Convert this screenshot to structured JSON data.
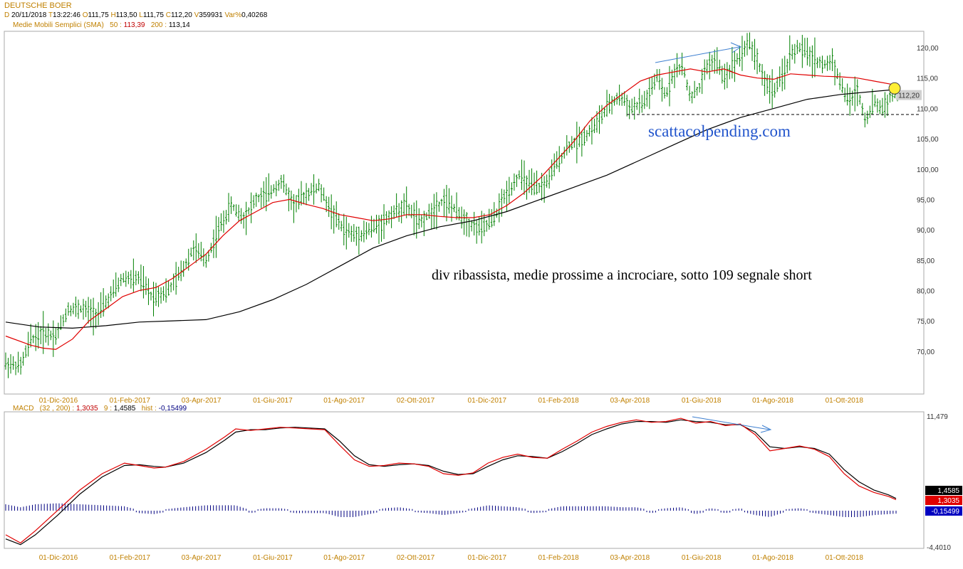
{
  "header": {
    "title": "DEUTSCHE BOER",
    "date_key": "D",
    "date": "20/11/2018",
    "time_key": "T",
    "time": "13:22:46",
    "open_key": "O",
    "open": "111,75",
    "high_key": "H",
    "high": "113,50",
    "low_key": "L",
    "low": "111,75",
    "close_key": "C",
    "close": "112,20",
    "vol_key": "V",
    "vol": "359931",
    "var_key": "Var%",
    "var": "0,40268"
  },
  "sma_legend": {
    "label": "Medie Mobili Semplici (SMA)",
    "p50_label": "50 :",
    "p50_value": "113,39",
    "p200_label": "200 :",
    "p200_value": "113,14"
  },
  "macd_legend": {
    "label": "MACD",
    "params": "(32 , 200) :",
    "macd_value": "1,3035",
    "signal_label": "9 :",
    "signal_value": "1,4585",
    "hist_label": "hist :",
    "hist_value": "-0,15499"
  },
  "colors": {
    "price_bar": "#008000",
    "sma50": "#e00000",
    "sma200": "#000000",
    "annotation_arrow": "#3d7fd0",
    "macd_line": "#e00000",
    "signal_line": "#000000",
    "histogram": "#000080",
    "date_label": "#c08000",
    "watermark": "#2255cc",
    "marker_circle": "#ffee33"
  },
  "annotations": {
    "comment": "div ribassista, medie prossime a incrociare, sotto 109 segnale short",
    "watermark": "scattacolpending.com",
    "support_level": 109
  },
  "chart_data": [
    {
      "type": "ohlc",
      "title": "DEUTSCHE BOER",
      "x_ticks": [
        "01-Dic-2016",
        "01-Feb-2017",
        "03-Apr-2017",
        "01-Giu-2017",
        "01-Ago-2017",
        "02-Ott-2017",
        "01-Dic-2017",
        "01-Feb-2018",
        "03-Apr-2018",
        "01-Giu-2018",
        "01-Ago-2018",
        "01-Ott-2018"
      ],
      "y_ticks": [
        "70,00",
        "75,00",
        "80,00",
        "85,00",
        "90,00",
        "95,00",
        "100,00",
        "105,00",
        "110,00",
        "115,00",
        "120,00"
      ],
      "ylim": [
        64,
        122
      ],
      "last_price_label": "112,20",
      "last_price": 112.2,
      "price_path": [
        [
          0,
          68
        ],
        [
          18,
          67.5
        ],
        [
          30,
          72
        ],
        [
          45,
          73
        ],
        [
          60,
          72.5
        ],
        [
          75,
          77
        ],
        [
          90,
          77
        ],
        [
          110,
          76
        ],
        [
          125,
          79
        ],
        [
          140,
          82
        ],
        [
          160,
          82
        ],
        [
          175,
          79
        ],
        [
          195,
          80
        ],
        [
          210,
          83
        ],
        [
          225,
          87
        ],
        [
          240,
          85
        ],
        [
          255,
          90
        ],
        [
          270,
          94
        ],
        [
          285,
          92
        ],
        [
          300,
          95
        ],
        [
          315,
          96
        ],
        [
          330,
          98
        ],
        [
          345,
          94
        ],
        [
          360,
          96
        ],
        [
          375,
          97
        ],
        [
          390,
          93
        ],
        [
          405,
          90
        ],
        [
          420,
          89
        ],
        [
          435,
          90
        ],
        [
          450,
          91
        ],
        [
          465,
          93
        ],
        [
          480,
          94
        ],
        [
          495,
          91
        ],
        [
          510,
          93
        ],
        [
          525,
          95
        ],
        [
          540,
          93
        ],
        [
          555,
          91
        ],
        [
          570,
          90
        ],
        [
          585,
          92
        ],
        [
          600,
          96
        ],
        [
          615,
          99
        ],
        [
          630,
          97
        ],
        [
          645,
          97
        ],
        [
          660,
          101
        ],
        [
          675,
          104
        ],
        [
          690,
          105
        ],
        [
          705,
          107
        ],
        [
          720,
          110
        ],
        [
          735,
          112
        ],
        [
          750,
          110
        ],
        [
          765,
          111
        ],
        [
          780,
          115
        ],
        [
          790,
          112
        ],
        [
          800,
          116
        ],
        [
          810,
          117
        ],
        [
          820,
          112
        ],
        [
          830,
          113
        ],
        [
          840,
          117
        ],
        [
          850,
          118
        ],
        [
          860,
          115
        ],
        [
          870,
          117
        ],
        [
          880,
          119
        ],
        [
          890,
          121
        ],
        [
          900,
          118
        ],
        [
          910,
          114
        ],
        [
          920,
          113
        ],
        [
          930,
          115
        ],
        [
          940,
          119
        ],
        [
          950,
          120
        ],
        [
          960,
          119
        ],
        [
          970,
          118
        ],
        [
          980,
          117
        ],
        [
          990,
          118
        ],
        [
          1000,
          114
        ],
        [
          1010,
          111
        ],
        [
          1020,
          113
        ],
        [
          1030,
          108
        ],
        [
          1040,
          111
        ],
        [
          1050,
          110
        ],
        [
          1060,
          112
        ],
        [
          1068,
          112.2
        ]
      ],
      "sma50_path": [
        [
          0,
          72.5
        ],
        [
          30,
          71
        ],
        [
          45,
          70.5
        ],
        [
          60,
          70.3
        ],
        [
          80,
          72
        ],
        [
          100,
          75
        ],
        [
          120,
          77
        ],
        [
          140,
          79
        ],
        [
          160,
          80
        ],
        [
          180,
          80.5
        ],
        [
          200,
          82
        ],
        [
          220,
          84
        ],
        [
          240,
          86
        ],
        [
          260,
          89
        ],
        [
          280,
          91.5
        ],
        [
          300,
          93
        ],
        [
          320,
          94.5
        ],
        [
          340,
          95
        ],
        [
          360,
          94.2
        ],
        [
          380,
          93.5
        ],
        [
          400,
          92.5
        ],
        [
          420,
          92
        ],
        [
          440,
          91.5
        ],
        [
          460,
          91.8
        ],
        [
          480,
          92.5
        ],
        [
          500,
          92.5
        ],
        [
          520,
          92.2
        ],
        [
          540,
          92
        ],
        [
          560,
          92
        ],
        [
          580,
          92.5
        ],
        [
          600,
          94
        ],
        [
          620,
          96
        ],
        [
          640,
          98.5
        ],
        [
          660,
          101.5
        ],
        [
          680,
          104.5
        ],
        [
          700,
          108
        ],
        [
          720,
          110.5
        ],
        [
          740,
          112.5
        ],
        [
          760,
          114.5
        ],
        [
          780,
          115.5
        ],
        [
          800,
          116
        ],
        [
          820,
          116.5
        ],
        [
          840,
          116
        ],
        [
          860,
          116.5
        ],
        [
          880,
          115.5
        ],
        [
          900,
          115
        ],
        [
          920,
          114.8
        ],
        [
          940,
          115.7
        ],
        [
          960,
          115.5
        ],
        [
          980,
          115.3
        ],
        [
          1000,
          115.2
        ],
        [
          1020,
          115
        ],
        [
          1040,
          114.5
        ],
        [
          1060,
          114
        ],
        [
          1068,
          113.39
        ]
      ],
      "sma200_path": [
        [
          0,
          74.8
        ],
        [
          40,
          74
        ],
        [
          80,
          73.8
        ],
        [
          120,
          74.2
        ],
        [
          160,
          74.8
        ],
        [
          200,
          75
        ],
        [
          240,
          75.2
        ],
        [
          280,
          76.5
        ],
        [
          320,
          78.5
        ],
        [
          360,
          81
        ],
        [
          400,
          84
        ],
        [
          440,
          87
        ],
        [
          480,
          89
        ],
        [
          520,
          90.5
        ],
        [
          560,
          91.5
        ],
        [
          600,
          93
        ],
        [
          640,
          95
        ],
        [
          680,
          97
        ],
        [
          720,
          99
        ],
        [
          760,
          101.5
        ],
        [
          800,
          104
        ],
        [
          840,
          106.5
        ],
        [
          880,
          108.5
        ],
        [
          920,
          110
        ],
        [
          960,
          111.5
        ],
        [
          1000,
          112.3
        ],
        [
          1040,
          112.8
        ],
        [
          1068,
          113.14
        ]
      ]
    },
    {
      "type": "line",
      "title": "MACD",
      "y_ticks": [
        "11,479",
        "-4,4010"
      ],
      "ylim": [
        -4.401,
        11.479
      ],
      "macd_value_label": "1,3035",
      "signal_value_label": "1,4585",
      "hist_value_label": "-0,15499",
      "macd_path": [
        [
          0,
          -3
        ],
        [
          20,
          -4
        ],
        [
          40,
          -2.5
        ],
        [
          70,
          0
        ],
        [
          100,
          2.5
        ],
        [
          130,
          4.5
        ],
        [
          160,
          5.8
        ],
        [
          180,
          5.5
        ],
        [
          200,
          5.2
        ],
        [
          215,
          5.3
        ],
        [
          240,
          6
        ],
        [
          270,
          7.5
        ],
        [
          295,
          9
        ],
        [
          310,
          10
        ],
        [
          330,
          9.8
        ],
        [
          350,
          10
        ],
        [
          370,
          10.2
        ],
        [
          390,
          10.1
        ],
        [
          410,
          10
        ],
        [
          430,
          9.9
        ],
        [
          450,
          8
        ],
        [
          470,
          6.2
        ],
        [
          490,
          5.4
        ],
        [
          510,
          5.5
        ],
        [
          530,
          5.8
        ],
        [
          550,
          5.7
        ],
        [
          570,
          5.4
        ],
        [
          590,
          4.5
        ],
        [
          610,
          4.3
        ],
        [
          630,
          4.6
        ],
        [
          650,
          5.8
        ],
        [
          670,
          6.5
        ],
        [
          690,
          6.9
        ],
        [
          710,
          6.5
        ],
        [
          730,
          6.4
        ],
        [
          750,
          7.5
        ],
        [
          770,
          8.5
        ],
        [
          790,
          9.6
        ],
        [
          810,
          10.3
        ],
        [
          830,
          10.8
        ],
        [
          850,
          11.1
        ],
        [
          870,
          10.8
        ],
        [
          890,
          10.9
        ],
        [
          910,
          11.3
        ],
        [
          930,
          10.7
        ],
        [
          950,
          10.9
        ],
        [
          970,
          10.4
        ],
        [
          990,
          10.6
        ],
        [
          1010,
          9.3
        ],
        [
          1030,
          7.3
        ],
        [
          1050,
          7.6
        ],
        [
          1070,
          7.9
        ],
        [
          1090,
          7.5
        ],
        [
          1110,
          6.6
        ],
        [
          1130,
          4.5
        ],
        [
          1150,
          3
        ],
        [
          1170,
          2.2
        ],
        [
          1190,
          1.7
        ],
        [
          1200,
          1.3035
        ]
      ],
      "signal_path": [
        [
          0,
          -3.5
        ],
        [
          20,
          -4.2
        ],
        [
          40,
          -3
        ],
        [
          70,
          -0.6
        ],
        [
          100,
          2
        ],
        [
          130,
          4.1
        ],
        [
          160,
          5.5
        ],
        [
          180,
          5.6
        ],
        [
          200,
          5.4
        ],
        [
          215,
          5.3
        ],
        [
          240,
          5.8
        ],
        [
          270,
          7.1
        ],
        [
          295,
          8.6
        ],
        [
          310,
          9.6
        ],
        [
          330,
          9.9
        ],
        [
          350,
          9.9
        ],
        [
          370,
          10.1
        ],
        [
          390,
          10.2
        ],
        [
          410,
          10.1
        ],
        [
          430,
          10
        ],
        [
          450,
          8.5
        ],
        [
          470,
          6.7
        ],
        [
          490,
          5.6
        ],
        [
          510,
          5.4
        ],
        [
          530,
          5.6
        ],
        [
          550,
          5.7
        ],
        [
          570,
          5.5
        ],
        [
          590,
          4.8
        ],
        [
          610,
          4.4
        ],
        [
          630,
          4.5
        ],
        [
          650,
          5.4
        ],
        [
          670,
          6.2
        ],
        [
          690,
          6.7
        ],
        [
          710,
          6.6
        ],
        [
          730,
          6.4
        ],
        [
          750,
          7.2
        ],
        [
          770,
          8.2
        ],
        [
          790,
          9.3
        ],
        [
          810,
          10
        ],
        [
          830,
          10.6
        ],
        [
          850,
          10.9
        ],
        [
          870,
          10.9
        ],
        [
          890,
          10.8
        ],
        [
          910,
          11.1
        ],
        [
          930,
          10.9
        ],
        [
          950,
          10.8
        ],
        [
          970,
          10.5
        ],
        [
          990,
          10.5
        ],
        [
          1010,
          9.6
        ],
        [
          1030,
          7.8
        ],
        [
          1050,
          7.6
        ],
        [
          1070,
          7.8
        ],
        [
          1090,
          7.6
        ],
        [
          1110,
          6.9
        ],
        [
          1130,
          5
        ],
        [
          1150,
          3.5
        ],
        [
          1170,
          2.5
        ],
        [
          1190,
          1.9
        ],
        [
          1200,
          1.4585
        ]
      ]
    }
  ]
}
